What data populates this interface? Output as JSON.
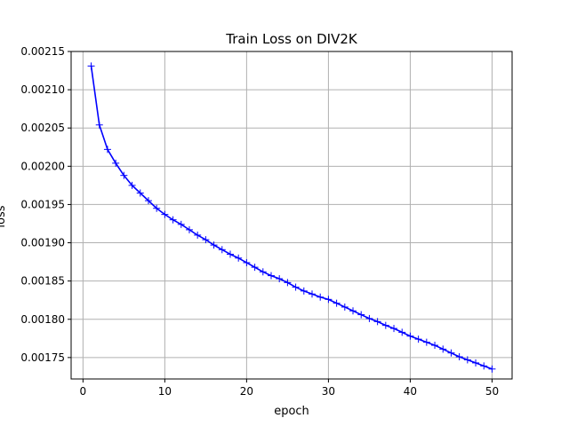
{
  "chart_data": {
    "type": "line",
    "title": "Train Loss on DIV2K",
    "xlabel": "epoch",
    "ylabel": "loss",
    "xlim": [
      -1.45,
      52.45
    ],
    "ylim": [
      0.001722,
      0.00215
    ],
    "grid": true,
    "x_ticks": [
      0,
      10,
      20,
      30,
      40,
      50
    ],
    "x_tick_labels": [
      "0",
      "10",
      "20",
      "30",
      "40",
      "50"
    ],
    "y_ticks": [
      0.00175,
      0.0018,
      0.00185,
      0.0019,
      0.00195,
      0.002,
      0.00205,
      0.0021,
      0.00215
    ],
    "y_tick_labels": [
      "0.00175",
      "0.00180",
      "0.00185",
      "0.00190",
      "0.00195",
      "0.00200",
      "0.00205",
      "0.00210",
      "0.00215"
    ],
    "series": [
      {
        "color": "#0000ff",
        "marker": "+",
        "x": [
          1,
          2,
          3,
          4,
          5,
          6,
          7,
          8,
          9,
          10,
          11,
          12,
          13,
          14,
          15,
          16,
          17,
          18,
          19,
          20,
          21,
          22,
          23,
          24,
          25,
          26,
          27,
          28,
          29,
          30,
          31,
          32,
          33,
          34,
          35,
          36,
          37,
          38,
          39,
          40,
          41,
          42,
          43,
          44,
          45,
          46,
          47,
          48,
          49,
          50
        ],
        "y": [
          0.002131,
          0.002054,
          0.002022,
          0.002004,
          0.001988,
          0.001975,
          0.001965,
          0.001955,
          0.001945,
          0.001937,
          0.00193,
          0.001924,
          0.001917,
          0.00191,
          0.001904,
          0.001897,
          0.001891,
          0.001885,
          0.00188,
          0.001874,
          0.001868,
          0.001862,
          0.001857,
          0.001853,
          0.001848,
          0.001842,
          0.001837,
          0.001833,
          0.001829,
          0.001826,
          0.001821,
          0.001816,
          0.001811,
          0.001806,
          0.001801,
          0.001797,
          0.001792,
          0.001788,
          0.001783,
          0.001778,
          0.001774,
          0.00177,
          0.001766,
          0.001761,
          0.001756,
          0.001751,
          0.001747,
          0.001743,
          0.001739,
          0.001735
        ]
      }
    ]
  }
}
